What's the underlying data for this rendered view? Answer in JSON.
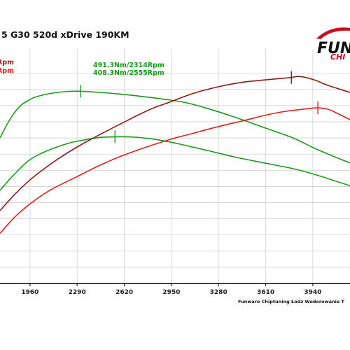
{
  "chart_data": {
    "type": "line",
    "title": "5 G30 520d xDrive 190KM",
    "x_ticks": [
      1960,
      2290,
      2620,
      2950,
      3280,
      3610,
      3940
    ],
    "xlim": [
      1750,
      4200
    ],
    "ylim": [
      0,
      1
    ],
    "grid": true,
    "peak_labels": [
      {
        "text": "Rpm",
        "color": "#8b1a1a"
      },
      {
        "text": "Rpm",
        "color": "#e0201a"
      },
      {
        "text": "491.3Nm/2314Rpm",
        "color": "#1a9a1a"
      },
      {
        "text": "408.3Nm/2555Rpm",
        "color": "#1a9a1a"
      }
    ],
    "series": [
      {
        "color": "#1a9a1a",
        "x": [
          1750,
          1800,
          1850,
          1900,
          1950,
          2000,
          2100,
          2200,
          2314,
          2450,
          2600,
          2750,
          2900,
          3050,
          3200,
          3400,
          3600,
          3800,
          3950,
          4100,
          4200
        ],
        "y": [
          0.64,
          0.7,
          0.75,
          0.785,
          0.805,
          0.82,
          0.835,
          0.843,
          0.845,
          0.84,
          0.832,
          0.822,
          0.81,
          0.795,
          0.77,
          0.73,
          0.685,
          0.64,
          0.595,
          0.555,
          0.53
        ],
        "peak_x": 2314
      },
      {
        "color": "#1a9a1a",
        "x": [
          1750,
          1850,
          1950,
          2050,
          2150,
          2250,
          2350,
          2450,
          2555,
          2700,
          2850,
          3000,
          3200,
          3400,
          3600,
          3800,
          3950,
          4100,
          4200
        ],
        "y": [
          0.41,
          0.48,
          0.54,
          0.575,
          0.6,
          0.62,
          0.632,
          0.642,
          0.645,
          0.643,
          0.632,
          0.614,
          0.585,
          0.555,
          0.53,
          0.505,
          0.48,
          0.45,
          0.43
        ],
        "peak_x": 2555
      },
      {
        "color": "#8b1a1a",
        "x": [
          1750,
          1850,
          1950,
          2050,
          2150,
          2290,
          2450,
          2620,
          2800,
          2950,
          3100,
          3280,
          3450,
          3610,
          3780,
          3850,
          3950,
          4050,
          4200
        ],
        "y": [
          0.32,
          0.39,
          0.45,
          0.5,
          0.545,
          0.6,
          0.655,
          0.71,
          0.765,
          0.8,
          0.835,
          0.865,
          0.885,
          0.895,
          0.905,
          0.91,
          0.895,
          0.87,
          0.84
        ],
        "peak_x": 3790
      },
      {
        "color": "#e0201a",
        "x": [
          1750,
          1850,
          1960,
          2100,
          2290,
          2450,
          2620,
          2800,
          2950,
          3100,
          3280,
          3450,
          3610,
          3750,
          3900,
          3975,
          4050,
          4120,
          4200
        ],
        "y": [
          0.22,
          0.29,
          0.35,
          0.41,
          0.47,
          0.52,
          0.565,
          0.605,
          0.635,
          0.66,
          0.69,
          0.715,
          0.74,
          0.757,
          0.768,
          0.772,
          0.765,
          0.745,
          0.72
        ],
        "peak_x": 3975
      }
    ],
    "footer": "Funware Chiptuning Łódź Wodorowanie T"
  },
  "logo": {
    "main": "FUN",
    "sub": "CHI"
  }
}
